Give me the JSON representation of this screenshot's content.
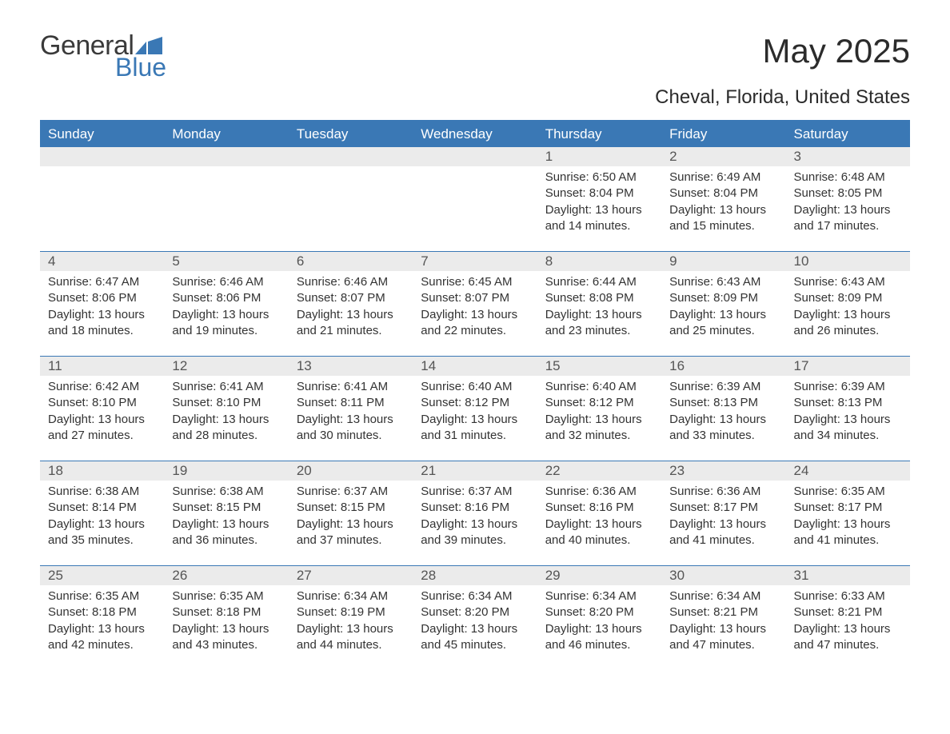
{
  "logo": {
    "text1": "General",
    "text2": "Blue",
    "shape_color": "#3a78b5"
  },
  "title": "May 2025",
  "subtitle": "Cheval, Florida, United States",
  "colors": {
    "header_bg": "#3a78b5",
    "header_text": "#ffffff",
    "daynum_bg": "#ebebeb",
    "daynum_text": "#555555",
    "body_text": "#333333",
    "rule": "#3a78b5",
    "page_bg": "#ffffff"
  },
  "fontsizes": {
    "title": 42,
    "subtitle": 24,
    "weekday": 17,
    "daynum": 17,
    "body": 15
  },
  "weekdays": [
    "Sunday",
    "Monday",
    "Tuesday",
    "Wednesday",
    "Thursday",
    "Friday",
    "Saturday"
  ],
  "weeks": [
    [
      {
        "empty": true
      },
      {
        "empty": true
      },
      {
        "empty": true
      },
      {
        "empty": true
      },
      {
        "num": "1",
        "sunrise": "Sunrise: 6:50 AM",
        "sunset": "Sunset: 8:04 PM",
        "day1": "Daylight: 13 hours",
        "day2": "and 14 minutes."
      },
      {
        "num": "2",
        "sunrise": "Sunrise: 6:49 AM",
        "sunset": "Sunset: 8:04 PM",
        "day1": "Daylight: 13 hours",
        "day2": "and 15 minutes."
      },
      {
        "num": "3",
        "sunrise": "Sunrise: 6:48 AM",
        "sunset": "Sunset: 8:05 PM",
        "day1": "Daylight: 13 hours",
        "day2": "and 17 minutes."
      }
    ],
    [
      {
        "num": "4",
        "sunrise": "Sunrise: 6:47 AM",
        "sunset": "Sunset: 8:06 PM",
        "day1": "Daylight: 13 hours",
        "day2": "and 18 minutes."
      },
      {
        "num": "5",
        "sunrise": "Sunrise: 6:46 AM",
        "sunset": "Sunset: 8:06 PM",
        "day1": "Daylight: 13 hours",
        "day2": "and 19 minutes."
      },
      {
        "num": "6",
        "sunrise": "Sunrise: 6:46 AM",
        "sunset": "Sunset: 8:07 PM",
        "day1": "Daylight: 13 hours",
        "day2": "and 21 minutes."
      },
      {
        "num": "7",
        "sunrise": "Sunrise: 6:45 AM",
        "sunset": "Sunset: 8:07 PM",
        "day1": "Daylight: 13 hours",
        "day2": "and 22 minutes."
      },
      {
        "num": "8",
        "sunrise": "Sunrise: 6:44 AM",
        "sunset": "Sunset: 8:08 PM",
        "day1": "Daylight: 13 hours",
        "day2": "and 23 minutes."
      },
      {
        "num": "9",
        "sunrise": "Sunrise: 6:43 AM",
        "sunset": "Sunset: 8:09 PM",
        "day1": "Daylight: 13 hours",
        "day2": "and 25 minutes."
      },
      {
        "num": "10",
        "sunrise": "Sunrise: 6:43 AM",
        "sunset": "Sunset: 8:09 PM",
        "day1": "Daylight: 13 hours",
        "day2": "and 26 minutes."
      }
    ],
    [
      {
        "num": "11",
        "sunrise": "Sunrise: 6:42 AM",
        "sunset": "Sunset: 8:10 PM",
        "day1": "Daylight: 13 hours",
        "day2": "and 27 minutes."
      },
      {
        "num": "12",
        "sunrise": "Sunrise: 6:41 AM",
        "sunset": "Sunset: 8:10 PM",
        "day1": "Daylight: 13 hours",
        "day2": "and 28 minutes."
      },
      {
        "num": "13",
        "sunrise": "Sunrise: 6:41 AM",
        "sunset": "Sunset: 8:11 PM",
        "day1": "Daylight: 13 hours",
        "day2": "and 30 minutes."
      },
      {
        "num": "14",
        "sunrise": "Sunrise: 6:40 AM",
        "sunset": "Sunset: 8:12 PM",
        "day1": "Daylight: 13 hours",
        "day2": "and 31 minutes."
      },
      {
        "num": "15",
        "sunrise": "Sunrise: 6:40 AM",
        "sunset": "Sunset: 8:12 PM",
        "day1": "Daylight: 13 hours",
        "day2": "and 32 minutes."
      },
      {
        "num": "16",
        "sunrise": "Sunrise: 6:39 AM",
        "sunset": "Sunset: 8:13 PM",
        "day1": "Daylight: 13 hours",
        "day2": "and 33 minutes."
      },
      {
        "num": "17",
        "sunrise": "Sunrise: 6:39 AM",
        "sunset": "Sunset: 8:13 PM",
        "day1": "Daylight: 13 hours",
        "day2": "and 34 minutes."
      }
    ],
    [
      {
        "num": "18",
        "sunrise": "Sunrise: 6:38 AM",
        "sunset": "Sunset: 8:14 PM",
        "day1": "Daylight: 13 hours",
        "day2": "and 35 minutes."
      },
      {
        "num": "19",
        "sunrise": "Sunrise: 6:38 AM",
        "sunset": "Sunset: 8:15 PM",
        "day1": "Daylight: 13 hours",
        "day2": "and 36 minutes."
      },
      {
        "num": "20",
        "sunrise": "Sunrise: 6:37 AM",
        "sunset": "Sunset: 8:15 PM",
        "day1": "Daylight: 13 hours",
        "day2": "and 37 minutes."
      },
      {
        "num": "21",
        "sunrise": "Sunrise: 6:37 AM",
        "sunset": "Sunset: 8:16 PM",
        "day1": "Daylight: 13 hours",
        "day2": "and 39 minutes."
      },
      {
        "num": "22",
        "sunrise": "Sunrise: 6:36 AM",
        "sunset": "Sunset: 8:16 PM",
        "day1": "Daylight: 13 hours",
        "day2": "and 40 minutes."
      },
      {
        "num": "23",
        "sunrise": "Sunrise: 6:36 AM",
        "sunset": "Sunset: 8:17 PM",
        "day1": "Daylight: 13 hours",
        "day2": "and 41 minutes."
      },
      {
        "num": "24",
        "sunrise": "Sunrise: 6:35 AM",
        "sunset": "Sunset: 8:17 PM",
        "day1": "Daylight: 13 hours",
        "day2": "and 41 minutes."
      }
    ],
    [
      {
        "num": "25",
        "sunrise": "Sunrise: 6:35 AM",
        "sunset": "Sunset: 8:18 PM",
        "day1": "Daylight: 13 hours",
        "day2": "and 42 minutes."
      },
      {
        "num": "26",
        "sunrise": "Sunrise: 6:35 AM",
        "sunset": "Sunset: 8:18 PM",
        "day1": "Daylight: 13 hours",
        "day2": "and 43 minutes."
      },
      {
        "num": "27",
        "sunrise": "Sunrise: 6:34 AM",
        "sunset": "Sunset: 8:19 PM",
        "day1": "Daylight: 13 hours",
        "day2": "and 44 minutes."
      },
      {
        "num": "28",
        "sunrise": "Sunrise: 6:34 AM",
        "sunset": "Sunset: 8:20 PM",
        "day1": "Daylight: 13 hours",
        "day2": "and 45 minutes."
      },
      {
        "num": "29",
        "sunrise": "Sunrise: 6:34 AM",
        "sunset": "Sunset: 8:20 PM",
        "day1": "Daylight: 13 hours",
        "day2": "and 46 minutes."
      },
      {
        "num": "30",
        "sunrise": "Sunrise: 6:34 AM",
        "sunset": "Sunset: 8:21 PM",
        "day1": "Daylight: 13 hours",
        "day2": "and 47 minutes."
      },
      {
        "num": "31",
        "sunrise": "Sunrise: 6:33 AM",
        "sunset": "Sunset: 8:21 PM",
        "day1": "Daylight: 13 hours",
        "day2": "and 47 minutes."
      }
    ]
  ]
}
